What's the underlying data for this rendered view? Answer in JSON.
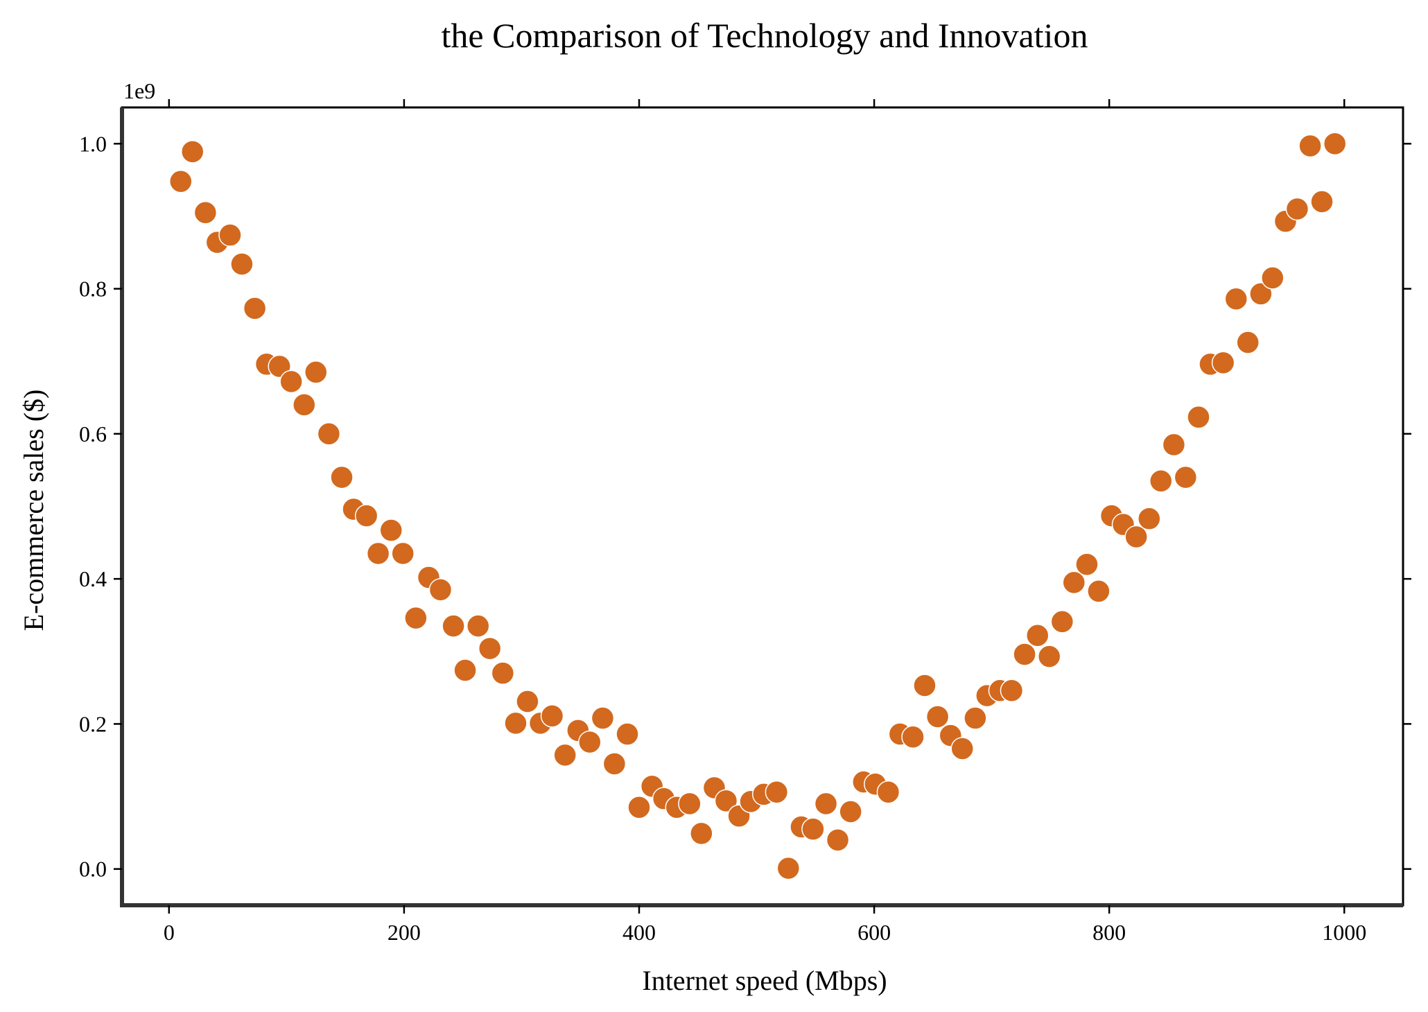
{
  "chart_data": {
    "type": "scatter",
    "title": "the Comparison of Technology and Innovation",
    "xlabel": "Internet speed (Mbps)",
    "ylabel": "E-commerce sales ($)",
    "y_offset_label": "1e9",
    "xlim": [
      -40,
      1050
    ],
    "ylim": [
      -0.05,
      1.05
    ],
    "x_ticks": [
      0,
      200,
      400,
      600,
      800,
      1000
    ],
    "x_tick_labels": [
      "0",
      "200",
      "400",
      "600",
      "800",
      "1000"
    ],
    "y_ticks": [
      0.0,
      0.2,
      0.4,
      0.6,
      0.8,
      1.0
    ],
    "y_tick_labels": [
      "0.0",
      "0.2",
      "0.4",
      "0.6",
      "0.8",
      "1.0"
    ],
    "grid": false,
    "marker_color": "#d2691e",
    "marker_edge_color": "#ffffff",
    "points": [
      [
        10,
        0.948
      ],
      [
        20,
        0.989
      ],
      [
        31,
        0.905
      ],
      [
        41,
        0.864
      ],
      [
        52,
        0.874
      ],
      [
        62,
        0.834
      ],
      [
        73,
        0.773
      ],
      [
        83,
        0.696
      ],
      [
        94,
        0.693
      ],
      [
        104,
        0.672
      ],
      [
        115,
        0.64
      ],
      [
        125,
        0.685
      ],
      [
        136,
        0.6
      ],
      [
        147,
        0.54
      ],
      [
        157,
        0.496
      ],
      [
        168,
        0.487
      ],
      [
        178,
        0.435
      ],
      [
        189,
        0.467
      ],
      [
        199,
        0.435
      ],
      [
        210,
        0.346
      ],
      [
        221,
        0.402
      ],
      [
        231,
        0.385
      ],
      [
        242,
        0.335
      ],
      [
        252,
        0.274
      ],
      [
        263,
        0.335
      ],
      [
        273,
        0.304
      ],
      [
        284,
        0.27
      ],
      [
        295,
        0.201
      ],
      [
        305,
        0.231
      ],
      [
        316,
        0.201
      ],
      [
        326,
        0.211
      ],
      [
        337,
        0.157
      ],
      [
        348,
        0.191
      ],
      [
        358,
        0.175
      ],
      [
        369,
        0.208
      ],
      [
        379,
        0.145
      ],
      [
        390,
        0.186
      ],
      [
        400,
        0.085
      ],
      [
        411,
        0.114
      ],
      [
        421,
        0.097
      ],
      [
        432,
        0.085
      ],
      [
        443,
        0.09
      ],
      [
        453,
        0.049
      ],
      [
        464,
        0.112
      ],
      [
        474,
        0.094
      ],
      [
        485,
        0.073
      ],
      [
        495,
        0.093
      ],
      [
        506,
        0.103
      ],
      [
        517,
        0.106
      ],
      [
        527,
        0.001
      ],
      [
        538,
        0.058
      ],
      [
        548,
        0.055
      ],
      [
        559,
        0.09
      ],
      [
        569,
        0.04
      ],
      [
        580,
        0.079
      ],
      [
        591,
        0.12
      ],
      [
        601,
        0.117
      ],
      [
        612,
        0.106
      ],
      [
        622,
        0.186
      ],
      [
        633,
        0.182
      ],
      [
        643,
        0.253
      ],
      [
        654,
        0.21
      ],
      [
        665,
        0.184
      ],
      [
        675,
        0.166
      ],
      [
        686,
        0.208
      ],
      [
        696,
        0.239
      ],
      [
        707,
        0.246
      ],
      [
        717,
        0.246
      ],
      [
        728,
        0.296
      ],
      [
        739,
        0.322
      ],
      [
        749,
        0.293
      ],
      [
        760,
        0.341
      ],
      [
        770,
        0.395
      ],
      [
        781,
        0.42
      ],
      [
        791,
        0.383
      ],
      [
        802,
        0.487
      ],
      [
        812,
        0.475
      ],
      [
        823,
        0.458
      ],
      [
        834,
        0.483
      ],
      [
        844,
        0.535
      ],
      [
        855,
        0.585
      ],
      [
        865,
        0.54
      ],
      [
        876,
        0.623
      ],
      [
        886,
        0.696
      ],
      [
        897,
        0.698
      ],
      [
        908,
        0.786
      ],
      [
        918,
        0.726
      ],
      [
        929,
        0.793
      ],
      [
        939,
        0.815
      ],
      [
        950,
        0.893
      ],
      [
        960,
        0.91
      ],
      [
        971,
        0.997
      ],
      [
        981,
        0.92
      ],
      [
        992,
        1.0
      ]
    ]
  }
}
